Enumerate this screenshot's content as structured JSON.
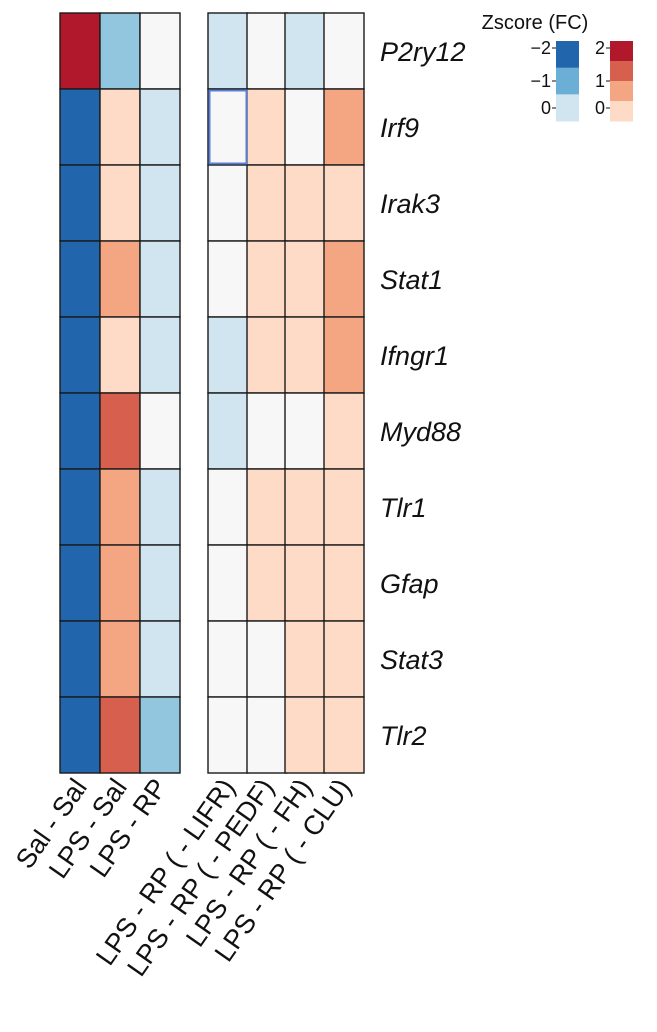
{
  "chart_data": {
    "type": "heatmap",
    "rows": [
      "P2ry12",
      "Irf9",
      "Irak3",
      "Stat1",
      "Ifngr1",
      "Myd88",
      "Tlr1",
      "Gfap",
      "Stat3",
      "Tlr2"
    ],
    "columns": [
      "Sal - Sal",
      "LPS - Sal",
      "LPS - RP",
      "LPS - RP ( - LIFR)",
      "LPS - RP ( - PEDF)",
      "LPS - RP ( - FH)",
      "LPS - RP ( - CLU)"
    ],
    "column_groups": [
      [
        0,
        1,
        2
      ],
      [
        3,
        4,
        5,
        6
      ]
    ],
    "values": [
      [
        2,
        -1,
        0,
        -0.5,
        0,
        -0.5,
        0
      ],
      [
        -2,
        0.5,
        -0.5,
        0,
        0.5,
        0,
        1
      ],
      [
        -2,
        0.5,
        -0.5,
        0,
        0.5,
        0.5,
        0.5
      ],
      [
        -2,
        1,
        -0.5,
        0,
        0.5,
        0.5,
        1
      ],
      [
        -2,
        0.5,
        -0.5,
        -0.5,
        0.5,
        0.5,
        1
      ],
      [
        -2,
        1.5,
        0,
        -0.5,
        0,
        0,
        0.5
      ],
      [
        -2,
        1,
        -0.5,
        0,
        0.5,
        0.5,
        0.5
      ],
      [
        -2,
        1,
        -0.5,
        0,
        0.5,
        0.5,
        0.5
      ],
      [
        -2,
        1,
        -0.5,
        0,
        0,
        0.5,
        0.5
      ],
      [
        -2,
        1.5,
        -1,
        0,
        0,
        0.5,
        0.5
      ]
    ],
    "highlighted_cell": {
      "row": 1,
      "column": 3
    },
    "legend": {
      "title": "Zscore (FC)",
      "placement": "top-right",
      "negative": {
        "ticks": [
          "−2",
          "−1",
          "0"
        ],
        "colors": [
          "#2166ac",
          "#6baed6",
          "#d1e5f0"
        ]
      },
      "positive": {
        "ticks": [
          "2",
          "1",
          "0"
        ],
        "colors": [
          "#b2182b",
          "#d6604d",
          "#f4a582",
          "#fddbc7"
        ]
      }
    },
    "colors": {
      "neg2": "#2166ac",
      "neg1_5": "#4393c3",
      "neg1": "#92c5de",
      "neg0_5": "#d1e5f0",
      "zero": "#f7f7f7",
      "pos0_5": "#fddbc7",
      "pos1": "#f4a582",
      "pos1_5": "#d6604d",
      "pos2": "#b2182b",
      "highlight": "#5b7fd6"
    }
  }
}
